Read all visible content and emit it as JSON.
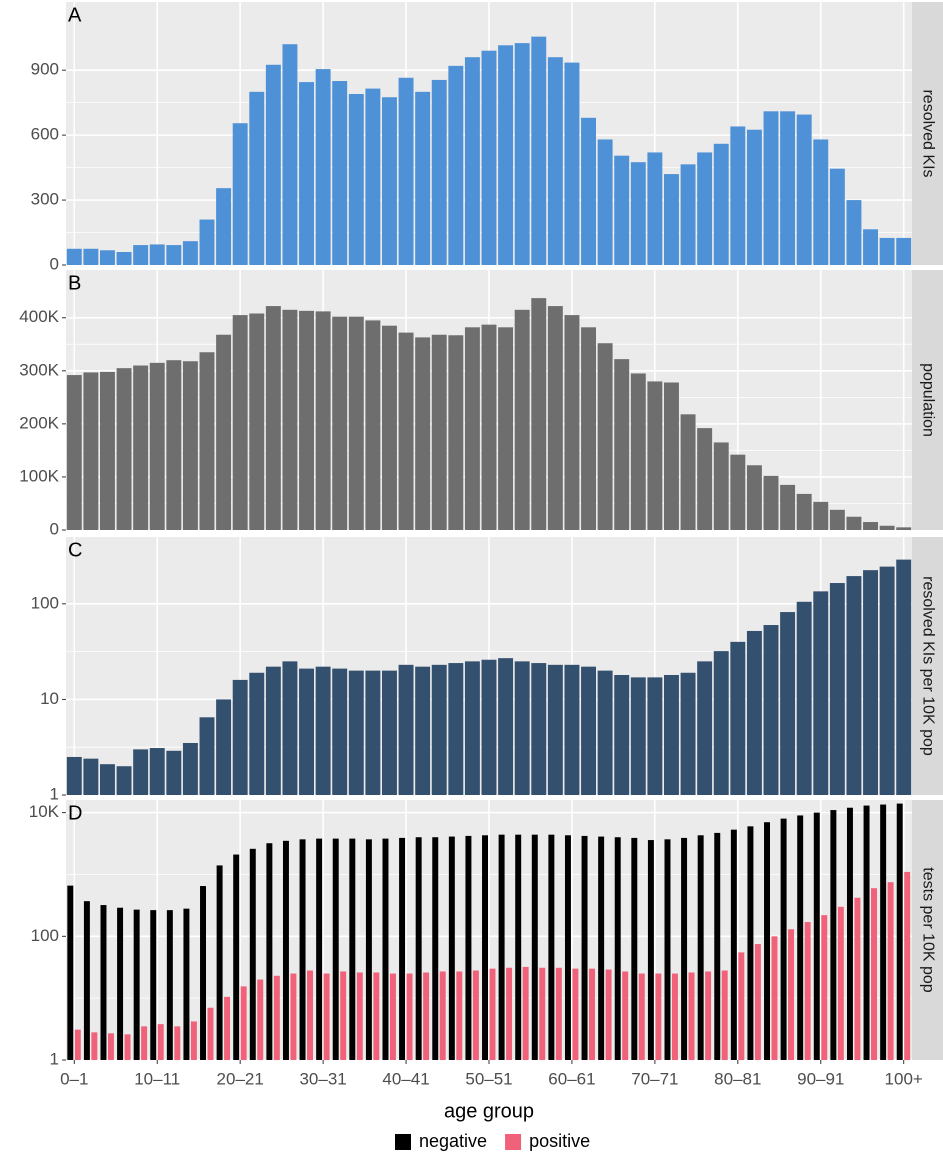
{
  "chart_data": [
    {
      "type": "bar",
      "label": "A",
      "ylabel": "resolved KIs",
      "color": "#4f91d6",
      "values": [
        75,
        75,
        68,
        60,
        92,
        95,
        92,
        110,
        210,
        355,
        655,
        800,
        925,
        1020,
        845,
        905,
        850,
        790,
        815,
        775,
        865,
        800,
        855,
        920,
        960,
        990,
        1015,
        1025,
        1055,
        960,
        935,
        680,
        580,
        505,
        475,
        520,
        420,
        465,
        520,
        560,
        640,
        625,
        710,
        710,
        695,
        580,
        445,
        300,
        165,
        125,
        125
      ],
      "ylim": [
        0,
        1215
      ],
      "yticks": [
        0,
        300,
        600,
        900
      ],
      "grid": true,
      "log": false
    },
    {
      "type": "bar",
      "label": "B",
      "ylabel": "population",
      "color": "#6e6e6e",
      "values": [
        292000,
        297000,
        298000,
        305000,
        310000,
        315000,
        320000,
        318000,
        335000,
        368000,
        405000,
        408000,
        422000,
        415000,
        413000,
        412000,
        402000,
        402000,
        395000,
        385000,
        372000,
        363000,
        368000,
        367000,
        382000,
        387000,
        382000,
        415000,
        437000,
        422000,
        405000,
        382000,
        352000,
        322000,
        295000,
        280000,
        278000,
        218000,
        192000,
        165000,
        142000,
        122000,
        102000,
        85000,
        68000,
        53000,
        38000,
        25000,
        15000,
        8000,
        5000
      ],
      "ylim": [
        0,
        490000
      ],
      "yticks": [
        0,
        {
          "value": 100000,
          "label": "100K"
        },
        {
          "value": 200000,
          "label": "200K"
        },
        {
          "value": 300000,
          "label": "300K"
        },
        {
          "value": 400000,
          "label": "400K"
        }
      ],
      "grid": true,
      "log": false
    },
    {
      "type": "bar",
      "label": "C",
      "ylabel": "resolved KIs per 10K pop",
      "color": "#34506f",
      "values": [
        2.5,
        2.4,
        2.1,
        2.0,
        3.0,
        3.1,
        2.9,
        3.5,
        6.5,
        10,
        16,
        19,
        22,
        25,
        21,
        22,
        21,
        20,
        20,
        20,
        23,
        22,
        23,
        24,
        25,
        26,
        27,
        25,
        24,
        23,
        23,
        22,
        20,
        18,
        17,
        17,
        18,
        19,
        25,
        32,
        40,
        52,
        60,
        82,
        105,
        135,
        165,
        195,
        225,
        245,
        290
      ],
      "ylim": [
        1,
        500
      ],
      "yticks": [
        1,
        10,
        100
      ],
      "grid": true,
      "log": true
    },
    {
      "type": "grouped_bar",
      "label": "D",
      "ylabel": "tests per 10K pop",
      "xlabel": "age group",
      "categories": [
        "0–1",
        null,
        null,
        null,
        null,
        "10–11",
        null,
        null,
        null,
        null,
        "20–21",
        null,
        null,
        null,
        null,
        "30–31",
        null,
        null,
        null,
        null,
        "40–41",
        null,
        null,
        null,
        null,
        "50–51",
        null,
        null,
        null,
        null,
        "60–61",
        null,
        null,
        null,
        null,
        "70–71",
        null,
        null,
        null,
        null,
        "80–81",
        null,
        null,
        null,
        null,
        "90–91",
        null,
        null,
        null,
        null,
        "100+"
      ],
      "series": [
        {
          "name": "negative",
          "color": "#000000",
          "values": [
            660,
            370,
            320,
            290,
            270,
            265,
            265,
            280,
            650,
            1400,
            2100,
            2600,
            3200,
            3500,
            3700,
            3800,
            3800,
            3800,
            3700,
            3800,
            3900,
            4000,
            4000,
            4100,
            4200,
            4300,
            4400,
            4400,
            4400,
            4400,
            4300,
            4200,
            4100,
            4000,
            3900,
            3600,
            3700,
            3900,
            4300,
            4700,
            5300,
            6000,
            7000,
            8000,
            9000,
            10000,
            11000,
            12000,
            13000,
            13500,
            14000
          ]
        },
        {
          "name": "positive",
          "color": "#f0627a",
          "values": [
            3.1,
            2.8,
            2.7,
            2.6,
            3.5,
            3.8,
            3.5,
            4.2,
            7,
            10.5,
            15.5,
            20,
            23,
            25,
            28,
            25,
            27,
            26,
            26,
            25,
            25,
            26,
            27,
            27,
            28,
            30,
            31,
            32,
            31,
            31,
            30,
            30,
            29,
            27,
            25,
            25,
            25,
            26,
            27,
            28,
            55,
            75,
            100,
            130,
            170,
            220,
            300,
            420,
            600,
            750,
            1100
          ]
        }
      ],
      "ylim": [
        1,
        16000
      ],
      "yticks": [
        1,
        100,
        {
          "value": 10000,
          "label": "10K"
        }
      ],
      "grid": true,
      "log": true,
      "legend": "bottom"
    }
  ]
}
